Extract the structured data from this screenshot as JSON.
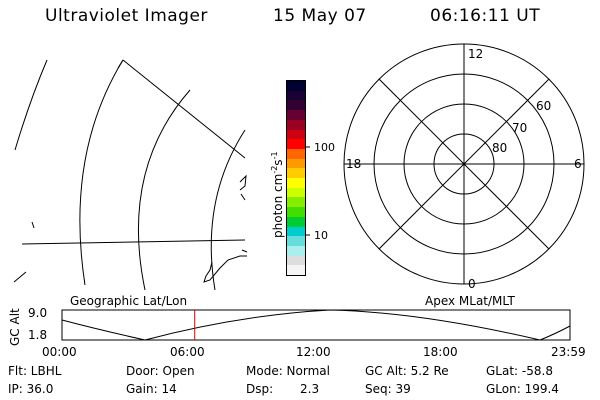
{
  "header": {
    "title": "Ultraviolet Imager",
    "date": "15 May 07",
    "time": "06:16:11 UT"
  },
  "colorbar": {
    "unit_label": "photon cm",
    "unit_sup1": "-2",
    "unit_mid": "s",
    "unit_sup2": "-1",
    "ticks": [
      "100",
      "10"
    ],
    "colors": [
      "#000033",
      "#1a0033",
      "#330033",
      "#660033",
      "#990022",
      "#cc0011",
      "#ff0000",
      "#ff6600",
      "#ff9900",
      "#ffcc00",
      "#ffff00",
      "#ccff00",
      "#88ee00",
      "#44dd00",
      "#00cc33",
      "#00cccc",
      "#66dddd",
      "#aaeeee",
      "#dddddd",
      "#f5f5f5"
    ]
  },
  "polar": {
    "mlt_labels": {
      "top": "12",
      "bottom": "0",
      "left": "18",
      "right": "6"
    },
    "lat_labels": [
      "60",
      "70",
      "80"
    ]
  },
  "labels": {
    "left_panel": "Geographic Lat/Lon",
    "right_panel": "Apex MLat/MLT"
  },
  "altitude_plot": {
    "ylabel": "GC Alt",
    "ymax": "9.0",
    "ymin": "1.8",
    "xticks": [
      "00:00",
      "06:00",
      "12:00",
      "18:00",
      "23:59"
    ],
    "marker_hour": 6.27
  },
  "info": {
    "flt": "Flt: LBHL",
    "ip": "IP: 36.0",
    "door": "Door: Open",
    "gain": "Gain: 14",
    "mode": "Mode: Normal",
    "dsp_label": "Dsp:",
    "dsp_value": "2.3",
    "gcalt": "GC Alt: 5.2 Re",
    "seq": "Seq: 39",
    "glat": "GLat: -58.8",
    "glon": "GLon: 199.4"
  }
}
